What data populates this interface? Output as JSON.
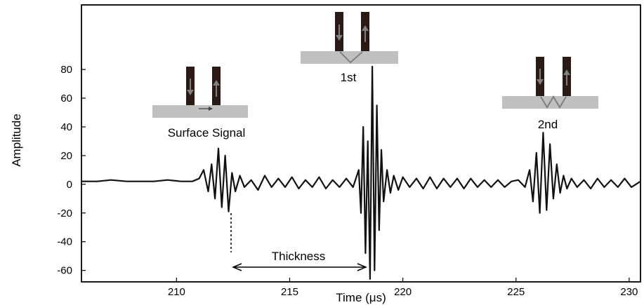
{
  "chart_data": {
    "type": "line",
    "xlabel": "Time (μs)",
    "ylabel": "Amplitude",
    "xlim": [
      205.8,
      230.5
    ],
    "ylim": [
      -68,
      125
    ],
    "xticks": [
      210,
      215,
      220,
      225,
      230
    ],
    "yticks": [
      -60,
      -40,
      -20,
      0,
      20,
      40,
      60,
      80
    ],
    "grid": false,
    "legend": "none",
    "colors": {
      "line": "#111111",
      "probe": "#2a1a16",
      "plate": "#c0c0c0",
      "arrow": "#808080"
    },
    "series": [
      {
        "x": [
          205.8,
          206.5,
          207.1,
          207.8,
          208.4,
          209.0,
          209.6,
          210.2,
          210.7,
          211.0,
          211.2,
          211.4,
          211.55,
          211.7,
          211.85,
          212.0,
          212.15,
          212.3,
          212.45,
          212.6,
          212.8,
          213.0,
          213.3,
          213.6,
          213.9,
          214.2,
          214.5,
          214.8,
          215.1,
          215.4,
          215.7,
          216.0,
          216.3,
          216.6,
          216.9,
          217.2,
          217.5,
          217.8,
          218.05,
          218.15,
          218.25,
          218.35,
          218.45,
          218.55,
          218.65,
          218.75,
          218.85,
          218.95,
          219.05,
          219.15,
          219.3,
          219.45,
          219.6,
          219.8,
          220.0,
          220.3,
          220.6,
          220.9,
          221.2,
          221.5,
          221.8,
          222.1,
          222.4,
          222.7,
          223.0,
          223.3,
          223.6,
          223.9,
          224.2,
          224.5,
          224.8,
          225.1,
          225.4,
          225.6,
          225.75,
          225.9,
          226.05,
          226.2,
          226.35,
          226.5,
          226.65,
          226.8,
          226.95,
          227.1,
          227.25,
          227.45,
          227.7,
          228.0,
          228.3,
          228.6,
          228.9,
          229.2,
          229.5,
          229.8,
          230.1,
          230.5
        ],
        "y": [
          2,
          2,
          3,
          2,
          2,
          2,
          3,
          2,
          2,
          4,
          10,
          -5,
          14,
          -10,
          25,
          -16,
          20,
          -19,
          8,
          -5,
          6,
          -2,
          3,
          -4,
          6,
          -2,
          4,
          -2,
          5,
          -3,
          3,
          -2,
          5,
          -3,
          3,
          -2,
          4,
          -2,
          10,
          -20,
          40,
          -48,
          30,
          -66,
          82,
          -60,
          55,
          -32,
          24,
          -12,
          10,
          -6,
          6,
          -4,
          5,
          -2,
          4,
          -3,
          5,
          -3,
          4,
          -2,
          4,
          -3,
          4,
          -2,
          3,
          -2,
          3,
          -2,
          2,
          3,
          -2,
          10,
          -12,
          22,
          -20,
          36,
          -18,
          28,
          -10,
          14,
          -6,
          6,
          -3,
          4,
          -2,
          3,
          -3,
          4,
          -2,
          3,
          -2,
          4,
          -2,
          2
        ]
      }
    ],
    "annotations": {
      "surface": "Surface Signal",
      "first": "1st",
      "second": "2nd",
      "thickness": "Thickness"
    }
  }
}
